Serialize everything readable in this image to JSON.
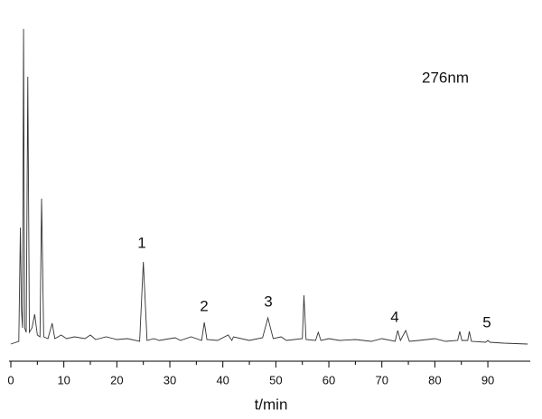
{
  "chart_data": {
    "type": "line",
    "x_label": "t/min",
    "annotations": [
      "1",
      "2",
      "3",
      "4",
      "5",
      "276nm"
    ],
    "x": [
      0,
      1.5,
      1.8,
      2.0,
      2.2,
      2.4,
      2.6,
      2.9,
      3.2,
      3.5,
      4.0,
      4.5,
      5.0,
      5.5,
      5.8,
      6.2,
      7.0,
      7.8,
      8.3,
      9.5,
      10.5,
      12,
      14,
      15,
      16,
      18,
      20,
      22,
      24.3,
      25,
      25.7,
      27,
      28,
      31,
      32,
      34,
      36,
      36.5,
      37,
      39,
      41,
      41.7,
      42,
      45,
      47.5,
      48.5,
      49.5,
      51,
      52,
      55,
      55.3,
      55.7,
      57.5,
      58,
      58.5,
      60,
      62,
      65,
      68,
      70,
      72.5,
      73,
      73.5,
      74.5,
      75.2,
      77,
      80,
      82,
      84.3,
      84.7,
      85.1,
      86.2,
      86.5,
      86.9,
      89.6,
      90,
      90.4,
      93,
      97.5
    ],
    "series": [
      {
        "color": "#333333",
        "values": [
          2,
          5,
          131,
          40,
          20,
          351,
          20,
          15,
          298,
          15,
          20,
          35,
          12,
          10,
          163,
          10,
          8,
          25,
          8,
          12,
          8,
          10,
          8,
          12,
          7,
          10,
          7,
          8,
          5,
          93,
          6,
          8,
          6,
          9,
          6,
          10,
          6,
          26,
          7,
          6,
          12,
          6,
          10,
          6,
          9,
          31,
          8,
          10,
          6,
          8,
          56,
          7,
          6,
          15,
          6,
          8,
          6,
          7,
          5,
          8,
          5,
          17,
          6,
          17,
          5,
          6,
          8,
          5,
          6,
          16,
          6,
          6,
          16,
          5,
          4,
          6,
          4,
          3,
          2
        ]
      }
    ],
    "xlim": [
      0,
      98
    ],
    "xticks": [
      0,
      10,
      20,
      30,
      40,
      50,
      60,
      70,
      80,
      90
    ],
    "ylim": [
      0,
      360
    ]
  }
}
